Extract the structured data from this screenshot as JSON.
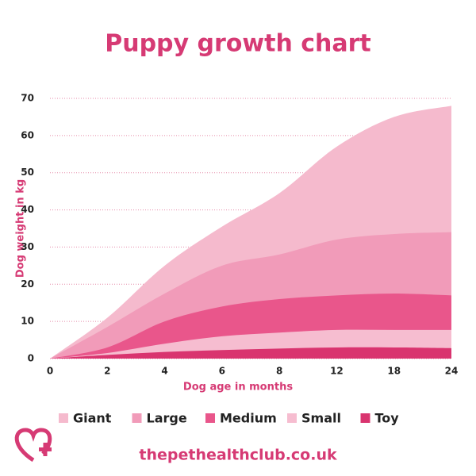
{
  "chart_data": {
    "type": "area",
    "title": "Puppy growth chart",
    "x_label": "Dog age in months",
    "y_label": "Dog weight in kg",
    "categories": [
      "0",
      "2",
      "4",
      "6",
      "8",
      "12",
      "18",
      "24"
    ],
    "series": [
      {
        "name": "Giant",
        "color": "#f5bacd",
        "values": [
          0,
          11,
          25,
          35.5,
          44.5,
          57,
          65,
          68
        ]
      },
      {
        "name": "Large",
        "color": "#f19bb9",
        "values": [
          0,
          8.5,
          17.5,
          25,
          28,
          32,
          33.5,
          34
        ]
      },
      {
        "name": "Medium",
        "color": "#e9568b",
        "values": [
          0,
          3,
          10,
          14,
          16,
          17,
          17.5,
          17
        ]
      },
      {
        "name": "Small",
        "color": "#f6bdd0",
        "values": [
          0,
          1.5,
          4,
          6,
          7,
          7.7,
          7.7,
          7.7
        ]
      },
      {
        "name": "Toy",
        "color": "#d9346f",
        "values": [
          0,
          1,
          1.8,
          2.3,
          2.7,
          3,
          3,
          2.8
        ]
      }
    ],
    "ylim": [
      0,
      70
    ],
    "yticks": [
      0,
      10,
      20,
      30,
      40,
      50,
      60,
      70
    ],
    "grid": true,
    "legend": "bottom"
  },
  "footer": "thepethealthclub.co.uk"
}
